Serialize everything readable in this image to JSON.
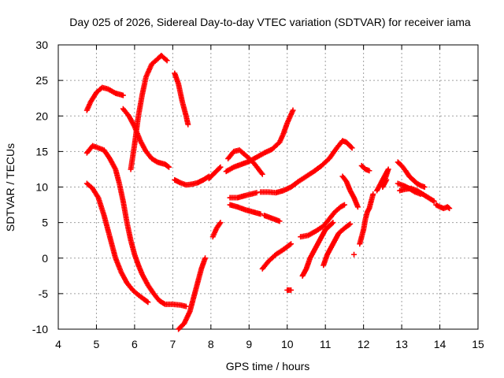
{
  "chart_data": {
    "type": "scatter",
    "title": "Day 025 of 2026, Sidereal Day-to-day VTEC variation (SDTVAR) for receiver iama",
    "xlabel": "GPS time / hours",
    "ylabel": "SDTVAR / TECUs",
    "xlim": [
      4,
      15
    ],
    "ylim": [
      -10,
      30
    ],
    "xticks": [
      "4",
      "5",
      "6",
      "7",
      "8",
      "9",
      "10",
      "11",
      "12",
      "13",
      "14",
      "15"
    ],
    "yticks": [
      "-10",
      "-5",
      "0",
      "5",
      "10",
      "15",
      "20",
      "25",
      "30"
    ],
    "grid": true,
    "marker": "plus",
    "color": "#ff0000",
    "series": [
      {
        "values": [
          [
            4.75,
            20.8
          ],
          [
            4.85,
            22.0
          ],
          [
            5.0,
            23.3
          ],
          [
            5.15,
            24.0
          ],
          [
            5.3,
            23.8
          ],
          [
            5.5,
            23.2
          ],
          [
            5.7,
            22.9
          ]
        ]
      },
      {
        "values": [
          [
            4.75,
            14.8
          ],
          [
            4.9,
            15.8
          ],
          [
            5.05,
            15.5
          ],
          [
            5.2,
            15.2
          ],
          [
            5.35,
            14.0
          ],
          [
            5.5,
            12.5
          ],
          [
            5.6,
            10.5
          ],
          [
            5.7,
            8.0
          ],
          [
            5.8,
            5.0
          ],
          [
            5.9,
            2.5
          ],
          [
            6.0,
            0.5
          ],
          [
            6.1,
            -1.0
          ],
          [
            6.2,
            -2.3
          ],
          [
            6.35,
            -3.8
          ],
          [
            6.5,
            -5.0
          ],
          [
            6.65,
            -6.0
          ],
          [
            6.8,
            -6.5
          ],
          [
            7.0,
            -6.5
          ],
          [
            7.2,
            -6.6
          ],
          [
            7.35,
            -6.8
          ]
        ]
      },
      {
        "values": [
          [
            4.75,
            10.5
          ],
          [
            4.9,
            9.8
          ],
          [
            5.05,
            8.5
          ],
          [
            5.2,
            6.0
          ],
          [
            5.35,
            3.0
          ],
          [
            5.5,
            0.0
          ],
          [
            5.65,
            -2.0
          ],
          [
            5.8,
            -3.5
          ],
          [
            5.95,
            -4.5
          ],
          [
            6.1,
            -5.2
          ],
          [
            6.25,
            -5.8
          ],
          [
            6.35,
            -6.2
          ]
        ]
      },
      {
        "values": [
          [
            5.9,
            12.5
          ],
          [
            6.0,
            16.0
          ],
          [
            6.1,
            20.0
          ],
          [
            6.2,
            23.0
          ],
          [
            6.3,
            25.5
          ],
          [
            6.45,
            27.3
          ],
          [
            6.6,
            28.0
          ],
          [
            6.7,
            28.5
          ],
          [
            6.85,
            27.8
          ]
        ]
      },
      {
        "values": [
          [
            7.05,
            26.0
          ],
          [
            7.15,
            24.5
          ],
          [
            7.25,
            22.0
          ],
          [
            7.35,
            20.0
          ],
          [
            7.4,
            18.8
          ]
        ]
      },
      {
        "values": [
          [
            5.7,
            21.0
          ],
          [
            5.85,
            20.0
          ],
          [
            6.0,
            18.5
          ],
          [
            6.15,
            16.5
          ],
          [
            6.3,
            15.0
          ],
          [
            6.45,
            14.0
          ],
          [
            6.6,
            13.5
          ],
          [
            6.8,
            13.2
          ],
          [
            6.9,
            12.8
          ]
        ]
      },
      {
        "values": [
          [
            7.05,
            11.0
          ],
          [
            7.2,
            10.6
          ],
          [
            7.35,
            10.3
          ],
          [
            7.5,
            10.4
          ],
          [
            7.65,
            10.6
          ],
          [
            7.8,
            11.0
          ],
          [
            7.95,
            11.5
          ]
        ]
      },
      {
        "values": [
          [
            7.15,
            -10.0
          ],
          [
            7.3,
            -9.2
          ],
          [
            7.45,
            -7.5
          ],
          [
            7.55,
            -5.5
          ],
          [
            7.65,
            -3.5
          ],
          [
            7.75,
            -1.5
          ],
          [
            7.85,
            0.0
          ]
        ]
      },
      {
        "values": [
          [
            8.05,
            3.0
          ],
          [
            8.15,
            4.2
          ],
          [
            8.25,
            5.0
          ]
        ]
      },
      {
        "values": [
          [
            7.95,
            11.2
          ],
          [
            8.1,
            12.0
          ],
          [
            8.25,
            12.8
          ]
        ]
      },
      {
        "values": [
          [
            8.45,
            14.0
          ],
          [
            8.6,
            15.0
          ],
          [
            8.75,
            15.2
          ],
          [
            8.9,
            14.5
          ],
          [
            9.05,
            13.8
          ],
          [
            9.15,
            13.2
          ],
          [
            9.25,
            12.5
          ],
          [
            9.35,
            11.8
          ]
        ]
      },
      {
        "values": [
          [
            8.4,
            12.2
          ],
          [
            8.6,
            12.8
          ],
          [
            8.8,
            13.2
          ],
          [
            9.0,
            13.6
          ],
          [
            9.2,
            14.2
          ],
          [
            9.4,
            14.8
          ],
          [
            9.6,
            15.3
          ],
          [
            9.8,
            16.3
          ],
          [
            9.9,
            17.5
          ],
          [
            10.0,
            19.0
          ],
          [
            10.1,
            20.2
          ],
          [
            10.15,
            20.8
          ]
        ]
      },
      {
        "values": [
          [
            8.5,
            8.5
          ],
          [
            8.7,
            8.5
          ],
          [
            8.9,
            8.8
          ],
          [
            9.05,
            9.0
          ],
          [
            9.2,
            9.2
          ]
        ]
      },
      {
        "values": [
          [
            9.3,
            9.3
          ],
          [
            9.5,
            9.3
          ],
          [
            9.7,
            9.2
          ],
          [
            9.9,
            9.5
          ],
          [
            10.1,
            10.0
          ],
          [
            10.3,
            10.8
          ],
          [
            10.5,
            11.5
          ],
          [
            10.7,
            12.2
          ],
          [
            10.9,
            13.0
          ],
          [
            11.1,
            14.0
          ],
          [
            11.3,
            15.5
          ],
          [
            11.45,
            16.5
          ]
        ]
      },
      {
        "values": [
          [
            8.5,
            7.5
          ],
          [
            8.7,
            7.2
          ],
          [
            8.9,
            6.8
          ],
          [
            9.1,
            6.5
          ],
          [
            9.3,
            6.2
          ]
        ]
      },
      {
        "values": [
          [
            9.4,
            6.0
          ],
          [
            9.6,
            5.6
          ],
          [
            9.8,
            5.2
          ]
        ]
      },
      {
        "values": [
          [
            9.35,
            -1.5
          ],
          [
            9.5,
            -0.5
          ],
          [
            9.7,
            0.5
          ],
          [
            9.9,
            1.2
          ],
          [
            10.1,
            2.0
          ]
        ]
      },
      {
        "values": [
          [
            10.0,
            -4.5
          ],
          [
            10.1,
            -4.5
          ]
        ]
      },
      {
        "values": [
          [
            10.4,
            -2.5
          ],
          [
            10.5,
            -1.5
          ],
          [
            10.6,
            0.0
          ],
          [
            10.7,
            1.0
          ],
          [
            10.8,
            2.0
          ],
          [
            10.9,
            3.0
          ],
          [
            11.0,
            4.0
          ],
          [
            11.1,
            4.5
          ],
          [
            11.2,
            5.0
          ]
        ]
      },
      {
        "values": [
          [
            10.35,
            3.0
          ],
          [
            10.55,
            3.2
          ],
          [
            10.75,
            3.8
          ],
          [
            10.95,
            4.5
          ],
          [
            11.1,
            5.5
          ],
          [
            11.25,
            6.5
          ],
          [
            11.4,
            7.2
          ],
          [
            11.5,
            7.5
          ]
        ]
      },
      {
        "values": [
          [
            10.95,
            -1.0
          ],
          [
            11.05,
            0.5
          ],
          [
            11.15,
            1.5
          ],
          [
            11.25,
            2.5
          ],
          [
            11.35,
            3.5
          ],
          [
            11.5,
            4.2
          ],
          [
            11.65,
            4.8
          ]
        ]
      },
      {
        "values": [
          [
            11.45,
            16.5
          ],
          [
            11.55,
            16.3
          ],
          [
            11.7,
            15.5
          ]
        ]
      },
      {
        "values": [
          [
            11.45,
            11.5
          ],
          [
            11.55,
            10.8
          ],
          [
            11.65,
            9.5
          ],
          [
            11.75,
            8.5
          ],
          [
            11.85,
            7.2
          ]
        ]
      },
      {
        "values": [
          [
            11.75,
            0.5
          ]
        ]
      },
      {
        "values": [
          [
            11.9,
            2.0
          ],
          [
            12.0,
            4.0
          ],
          [
            12.05,
            5.5
          ],
          [
            12.1,
            6.5
          ],
          [
            12.15,
            7.0
          ],
          [
            12.2,
            8.0
          ],
          [
            12.25,
            9.0
          ]
        ]
      },
      {
        "values": [
          [
            11.95,
            13.0
          ],
          [
            12.05,
            12.5
          ],
          [
            12.15,
            12.3
          ]
        ]
      },
      {
        "values": [
          [
            12.35,
            9.5
          ],
          [
            12.45,
            10.5
          ],
          [
            12.55,
            11.5
          ],
          [
            12.65,
            12.5
          ],
          [
            12.5,
            10.0
          ],
          [
            12.6,
            11.0
          ]
        ]
      },
      {
        "values": [
          [
            12.9,
            13.5
          ],
          [
            13.0,
            13.0
          ],
          [
            13.1,
            12.3
          ],
          [
            13.2,
            11.5
          ],
          [
            13.3,
            11.0
          ],
          [
            13.4,
            10.5
          ],
          [
            13.5,
            10.2
          ],
          [
            13.6,
            10.0
          ]
        ]
      },
      {
        "values": [
          [
            12.95,
            9.5
          ],
          [
            13.1,
            9.7
          ],
          [
            13.25,
            9.8
          ],
          [
            13.4,
            9.5
          ],
          [
            13.55,
            9.0
          ],
          [
            13.7,
            8.5
          ],
          [
            13.85,
            8.0
          ]
        ]
      },
      {
        "values": [
          [
            12.9,
            10.5
          ],
          [
            13.05,
            10.2
          ],
          [
            13.2,
            9.8
          ],
          [
            13.35,
            9.3
          ],
          [
            13.5,
            9.0
          ]
        ]
      },
      {
        "values": [
          [
            13.9,
            7.5
          ],
          [
            14.0,
            7.2
          ],
          [
            14.1,
            7.0
          ],
          [
            14.2,
            7.2
          ],
          [
            14.25,
            7.0
          ]
        ]
      }
    ]
  }
}
